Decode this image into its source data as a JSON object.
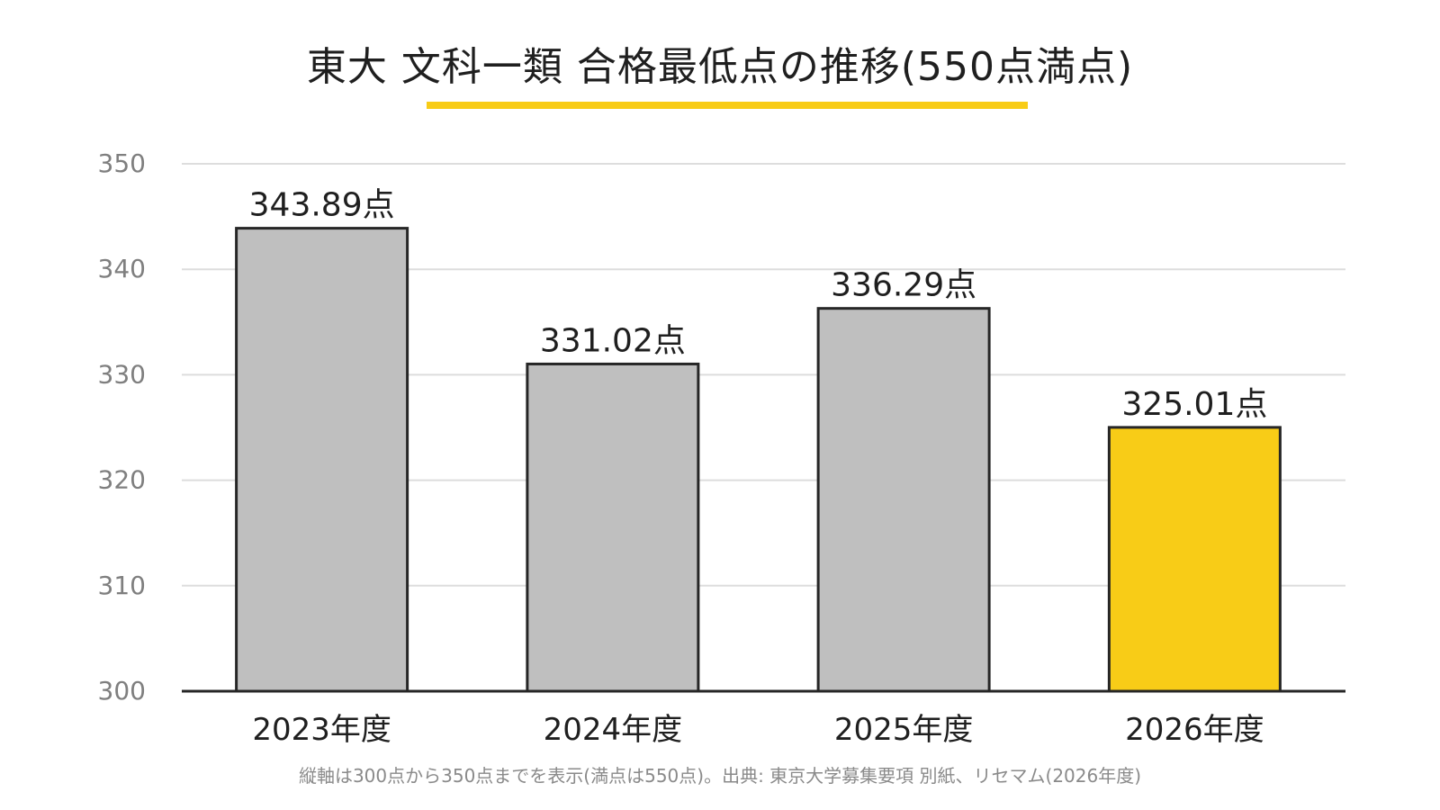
{
  "title": "東大 文科一類 合格最低点の推移(550点満点)",
  "footnote": "縦軸は300点から350点までを表示(満点は550点)。出典: 東京大学募集要項 別紙、リセマム(2026年度)",
  "colors": {
    "accent": "#F8CC17",
    "bar_default": "#BFBFBF",
    "bar_highlight": "#F8CC17",
    "bar_stroke": "#262626",
    "gridline": "#DDDDDD",
    "tick_label": "#7F7F7F",
    "label": "#1F1F1F"
  },
  "chart_data": {
    "type": "bar",
    "title": "東大 文科一類 合格最低点の推移(550点満点)",
    "xlabel": "",
    "ylabel": "",
    "categories": [
      "2023年度",
      "2024年度",
      "2025年度",
      "2026年度"
    ],
    "values": [
      343.89,
      331.02,
      336.29,
      325.01
    ],
    "data_labels": [
      "343.89点",
      "331.02点",
      "336.29点",
      "325.01点"
    ],
    "highlight": [
      false,
      false,
      false,
      true
    ],
    "ylim": [
      300,
      350
    ],
    "yticks": [
      300,
      310,
      320,
      330,
      340,
      350
    ],
    "grid": true
  }
}
